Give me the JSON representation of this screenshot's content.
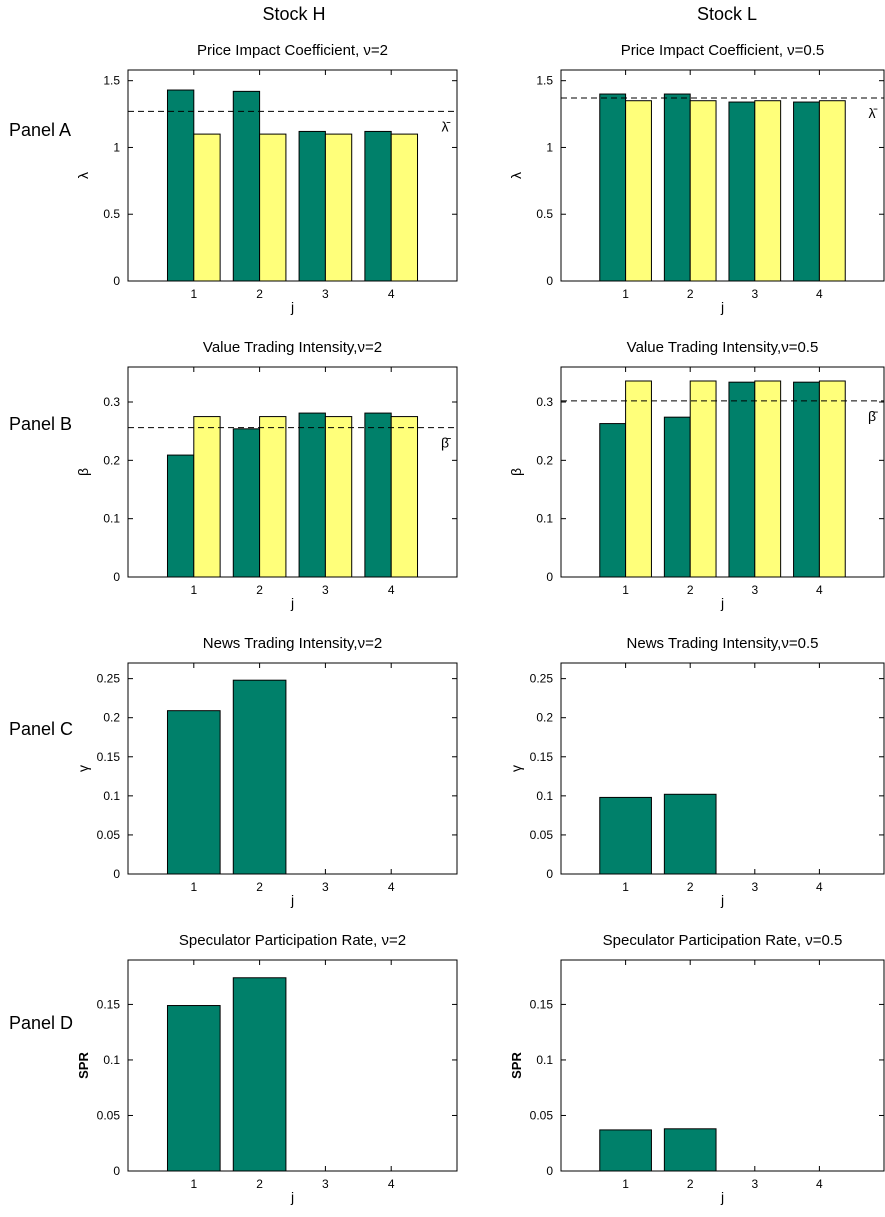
{
  "figure": {
    "column_titles": [
      "Stock H",
      "Stock L"
    ],
    "row_labels": [
      "Panel A",
      "Panel B",
      "Panel C",
      "Panel D"
    ]
  },
  "colors": {
    "green": "#00806a",
    "yellow": "#ffff7a",
    "edge": "#000000"
  },
  "chart_data": [
    {
      "type": "bar",
      "title": "Price Impact Coefficient, ν=2",
      "xlabel": "j",
      "ylabel": "λ",
      "ylabel_bold": false,
      "categories": [
        "1",
        "2",
        "3",
        "4"
      ],
      "xlim": [
        0,
        5
      ],
      "ylim": [
        0,
        1.58
      ],
      "yticks": [
        0,
        0.5,
        1,
        1.5
      ],
      "ytick_labels": [
        "0",
        "0.5",
        "1",
        "1.5"
      ],
      "series": [
        {
          "values": [
            1.43,
            1.42,
            1.12,
            1.12
          ]
        },
        {
          "values": [
            1.1,
            1.1,
            1.1,
            1.1
          ]
        }
      ],
      "reference_line": {
        "value": 1.27,
        "label": "λ̄"
      }
    },
    {
      "type": "bar",
      "title": "Price Impact Coefficient, ν=0.5",
      "xlabel": "j",
      "ylabel": "λ",
      "ylabel_bold": false,
      "categories": [
        "1",
        "2",
        "3",
        "4"
      ],
      "xlim": [
        0,
        5
      ],
      "ylim": [
        0,
        1.58
      ],
      "yticks": [
        0,
        0.5,
        1,
        1.5
      ],
      "ytick_labels": [
        "0",
        "0.5",
        "1",
        "1.5"
      ],
      "series": [
        {
          "values": [
            1.4,
            1.4,
            1.34,
            1.34
          ]
        },
        {
          "values": [
            1.35,
            1.35,
            1.35,
            1.35
          ]
        }
      ],
      "reference_line": {
        "value": 1.37,
        "label": "λ̄"
      }
    },
    {
      "type": "bar",
      "title": "Value Trading Intensity,ν=2",
      "xlabel": "j",
      "ylabel": "β",
      "ylabel_bold": false,
      "categories": [
        "1",
        "2",
        "3",
        "4"
      ],
      "xlim": [
        0,
        5
      ],
      "ylim": [
        0,
        0.36
      ],
      "yticks": [
        0,
        0.1,
        0.2,
        0.3
      ],
      "ytick_labels": [
        "0",
        "0.1",
        "0.2",
        "0.3"
      ],
      "series": [
        {
          "values": [
            0.209,
            0.254,
            0.281,
            0.281
          ]
        },
        {
          "values": [
            0.275,
            0.275,
            0.275,
            0.275
          ]
        }
      ],
      "reference_line": {
        "value": 0.256,
        "label": "β̄"
      }
    },
    {
      "type": "bar",
      "title": "Value Trading Intensity,ν=0.5",
      "xlabel": "j",
      "ylabel": "β",
      "ylabel_bold": false,
      "categories": [
        "1",
        "2",
        "3",
        "4"
      ],
      "xlim": [
        0,
        5
      ],
      "ylim": [
        0,
        0.36
      ],
      "yticks": [
        0,
        0.1,
        0.2,
        0.3
      ],
      "ytick_labels": [
        "0",
        "0.1",
        "0.2",
        "0.3"
      ],
      "series": [
        {
          "values": [
            0.263,
            0.274,
            0.334,
            0.334
          ]
        },
        {
          "values": [
            0.336,
            0.336,
            0.336,
            0.336
          ]
        }
      ],
      "reference_line": {
        "value": 0.302,
        "label": "β̄"
      }
    },
    {
      "type": "bar",
      "title": "News Trading Intensity,ν=2",
      "xlabel": "j",
      "ylabel": "γ",
      "ylabel_bold": false,
      "categories": [
        "1",
        "2",
        "3",
        "4"
      ],
      "xlim": [
        0,
        5
      ],
      "ylim": [
        0,
        0.27
      ],
      "yticks": [
        0,
        0.05,
        0.1,
        0.15,
        0.2,
        0.25
      ],
      "ytick_labels": [
        "0",
        "0.05",
        "0.1",
        "0.15",
        "0.2",
        "0.25"
      ],
      "series": [
        {
          "values": [
            0.209,
            0.248,
            0,
            0
          ]
        }
      ]
    },
    {
      "type": "bar",
      "title": "News Trading Intensity,ν=0.5",
      "xlabel": "j",
      "ylabel": "γ",
      "ylabel_bold": false,
      "categories": [
        "1",
        "2",
        "3",
        "4"
      ],
      "xlim": [
        0,
        5
      ],
      "ylim": [
        0,
        0.27
      ],
      "yticks": [
        0,
        0.05,
        0.1,
        0.15,
        0.2,
        0.25
      ],
      "ytick_labels": [
        "0",
        "0.05",
        "0.1",
        "0.15",
        "0.2",
        "0.25"
      ],
      "series": [
        {
          "values": [
            0.098,
            0.102,
            0,
            0
          ]
        }
      ]
    },
    {
      "type": "bar",
      "title": "Speculator Participation Rate, ν=2",
      "xlabel": "j",
      "ylabel": "SPR",
      "ylabel_bold": true,
      "categories": [
        "1",
        "2",
        "3",
        "4"
      ],
      "xlim": [
        0,
        5
      ],
      "ylim": [
        0,
        0.19
      ],
      "yticks": [
        0,
        0.05,
        0.1,
        0.15
      ],
      "ytick_labels": [
        "0",
        "0.05",
        "0.1",
        "0.15"
      ],
      "series": [
        {
          "values": [
            0.149,
            0.174,
            0,
            0
          ]
        }
      ]
    },
    {
      "type": "bar",
      "title": "Speculator Participation Rate, ν=0.5",
      "xlabel": "j",
      "ylabel": "SPR",
      "ylabel_bold": true,
      "categories": [
        "1",
        "2",
        "3",
        "4"
      ],
      "xlim": [
        0,
        5
      ],
      "ylim": [
        0,
        0.19
      ],
      "yticks": [
        0,
        0.05,
        0.1,
        0.15
      ],
      "ytick_labels": [
        "0",
        "0.05",
        "0.1",
        "0.15"
      ],
      "series": [
        {
          "values": [
            0.037,
            0.038,
            0,
            0
          ]
        }
      ]
    }
  ]
}
